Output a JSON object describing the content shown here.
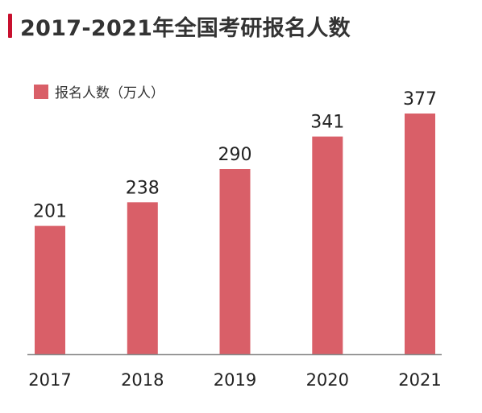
{
  "title": "2017-2021年全国考研报名人数",
  "accent_color": "#c8102e",
  "bar_color": "#d95f68",
  "chart_data": {
    "type": "bar",
    "title": "2017-2021年全国考研报名人数",
    "categories": [
      "2017",
      "2018",
      "2019",
      "2020",
      "2021"
    ],
    "series": [
      {
        "name": "报名人数（万人）",
        "values": [
          201,
          238,
          290,
          341,
          377
        ]
      }
    ],
    "xlabel": "",
    "ylabel": "",
    "ylim": [
      0,
      400
    ],
    "grid": false,
    "legend": "top-left",
    "data_labels": [
      "201",
      "238",
      "290",
      "341",
      "377"
    ]
  }
}
